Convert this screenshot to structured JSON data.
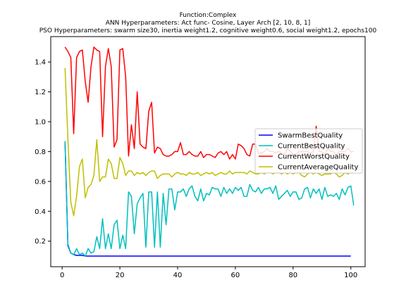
{
  "chart_data": {
    "type": "line",
    "title_lines": [
      "Function:Complex",
      "ANN Hyperparameters: Act func- Cosine, Layer Arch [2, 10, 8, 1]",
      "PSO Hyperparameters: swarm size30, inertia weight1.2, cognitive weight0.6, social weight1.2, epochs100"
    ],
    "xlabel": "",
    "ylabel": "",
    "xlim": [
      -3.95,
      104.95
    ],
    "ylim": [
      0.029,
      1.57
    ],
    "xticks": [
      0,
      20,
      40,
      60,
      80,
      100
    ],
    "yticks": [
      0.2,
      0.4,
      0.6,
      0.8,
      1.0,
      1.2,
      1.4
    ],
    "ytick_labels": [
      "0.2",
      "0.4",
      "0.6",
      "0.8",
      "1.0",
      "1.2",
      "1.4"
    ],
    "grid": false,
    "legend_position": "center-right",
    "series": [
      {
        "name": "SwarmBestQuality",
        "color": "#0000ff",
        "x_start": 1,
        "values": [
          0.86,
          0.17,
          0.12,
          0.11,
          0.105,
          0.105,
          0.105,
          0.1,
          0.1,
          0.1,
          0.1,
          0.1,
          0.1,
          0.1,
          0.1,
          0.1,
          0.1,
          0.1,
          0.1,
          0.1,
          0.1,
          0.1,
          0.1,
          0.1,
          0.1,
          0.1,
          0.1,
          0.1,
          0.1,
          0.1,
          0.1,
          0.1,
          0.1,
          0.1,
          0.1,
          0.1,
          0.1,
          0.1,
          0.1,
          0.1,
          0.1,
          0.1,
          0.1,
          0.1,
          0.1,
          0.1,
          0.1,
          0.1,
          0.1,
          0.1,
          0.1,
          0.1,
          0.1,
          0.1,
          0.1,
          0.1,
          0.1,
          0.1,
          0.1,
          0.1,
          0.1,
          0.1,
          0.1,
          0.1,
          0.1,
          0.1,
          0.1,
          0.1,
          0.1,
          0.1,
          0.1,
          0.1,
          0.1,
          0.1,
          0.1,
          0.1,
          0.1,
          0.1,
          0.1,
          0.1,
          0.1,
          0.1,
          0.1,
          0.1,
          0.1,
          0.1,
          0.1,
          0.1,
          0.1,
          0.1,
          0.1,
          0.1,
          0.1,
          0.1,
          0.1,
          0.1,
          0.1,
          0.1,
          0.1,
          0.1
        ]
      },
      {
        "name": "CurrentBestQuality",
        "color": "#00bfbf",
        "x_start": 1,
        "values": [
          0.87,
          0.18,
          0.12,
          0.11,
          0.15,
          0.11,
          0.12,
          0.1,
          0.15,
          0.12,
          0.13,
          0.23,
          0.15,
          0.35,
          0.15,
          0.25,
          0.15,
          0.31,
          0.34,
          0.15,
          0.24,
          0.15,
          0.53,
          0.5,
          0.25,
          0.45,
          0.49,
          0.52,
          0.16,
          0.53,
          0.53,
          0.16,
          0.53,
          0.16,
          0.52,
          0.31,
          0.55,
          0.55,
          0.41,
          0.53,
          0.53,
          0.55,
          0.5,
          0.55,
          0.57,
          0.5,
          0.47,
          0.55,
          0.47,
          0.52,
          0.51,
          0.56,
          0.55,
          0.55,
          0.5,
          0.56,
          0.52,
          0.55,
          0.52,
          0.56,
          0.54,
          0.56,
          0.5,
          0.5,
          0.58,
          0.54,
          0.53,
          0.56,
          0.52,
          0.55,
          0.55,
          0.56,
          0.52,
          0.57,
          0.48,
          0.5,
          0.52,
          0.54,
          0.5,
          0.53,
          0.53,
          0.48,
          0.49,
          0.55,
          0.56,
          0.49,
          0.55,
          0.52,
          0.55,
          0.48,
          0.56,
          0.5,
          0.51,
          0.5,
          0.52,
          0.48,
          0.55,
          0.51,
          0.56,
          0.57,
          0.44
        ]
      },
      {
        "name": "CurrentWorstQuality",
        "color": "#ff0000",
        "x_start": 1,
        "values": [
          1.5,
          1.47,
          1.43,
          0.92,
          1.43,
          1.47,
          1.48,
          1.27,
          1.13,
          1.37,
          1.5,
          1.48,
          1.47,
          0.9,
          1.37,
          1.49,
          1.37,
          0.83,
          0.88,
          1.48,
          1.49,
          1.3,
          0.77,
          0.98,
          0.82,
          1.2,
          0.85,
          0.83,
          0.82,
          1.07,
          1.13,
          0.79,
          0.83,
          0.82,
          0.78,
          0.77,
          0.77,
          0.78,
          0.8,
          0.8,
          0.86,
          0.78,
          0.78,
          0.8,
          0.78,
          0.77,
          0.77,
          0.8,
          0.76,
          0.78,
          0.78,
          0.77,
          0.76,
          0.79,
          0.8,
          0.78,
          0.8,
          0.75,
          0.78,
          0.75,
          0.85,
          0.84,
          0.82,
          0.78,
          0.77,
          0.85,
          0.85,
          0.79,
          0.79,
          0.8,
          0.82,
          0.8,
          0.8,
          0.79,
          0.8,
          0.79,
          0.78,
          0.82,
          0.8,
          0.78,
          0.78,
          0.8,
          0.8,
          0.8,
          0.8,
          0.79,
          0.8,
          0.97,
          0.8,
          0.8,
          0.78,
          0.82,
          0.8,
          0.8,
          0.78,
          0.8,
          0.8,
          0.8,
          0.82,
          0.8,
          0.8
        ]
      },
      {
        "name": "CurrentAverageQuality",
        "color": "#bfbf00",
        "x_start": 1,
        "values": [
          1.36,
          0.88,
          0.46,
          0.37,
          0.5,
          0.7,
          0.75,
          0.49,
          0.56,
          0.58,
          0.64,
          0.88,
          0.6,
          0.63,
          0.63,
          0.75,
          0.72,
          0.62,
          0.62,
          0.76,
          0.72,
          0.64,
          0.67,
          0.67,
          0.64,
          0.66,
          0.65,
          0.66,
          0.64,
          0.66,
          0.67,
          0.67,
          0.62,
          0.64,
          0.65,
          0.65,
          0.65,
          0.63,
          0.65,
          0.66,
          0.65,
          0.65,
          0.64,
          0.66,
          0.65,
          0.65,
          0.66,
          0.64,
          0.65,
          0.66,
          0.65,
          0.66,
          0.64,
          0.65,
          0.66,
          0.65,
          0.65,
          0.67,
          0.65,
          0.66,
          0.66,
          0.66,
          0.66,
          0.65,
          0.67,
          0.66,
          0.65,
          0.65,
          0.66,
          0.65,
          0.66,
          0.66,
          0.65,
          0.66,
          0.66,
          0.65,
          0.66,
          0.65,
          0.66,
          0.65,
          0.66,
          0.66,
          0.64,
          0.63,
          0.65,
          0.66,
          0.65,
          0.66,
          0.65,
          0.64,
          0.65,
          0.65,
          0.65,
          0.66,
          0.65,
          0.63,
          0.64,
          0.66,
          0.65,
          0.66,
          0.66
        ]
      }
    ]
  }
}
